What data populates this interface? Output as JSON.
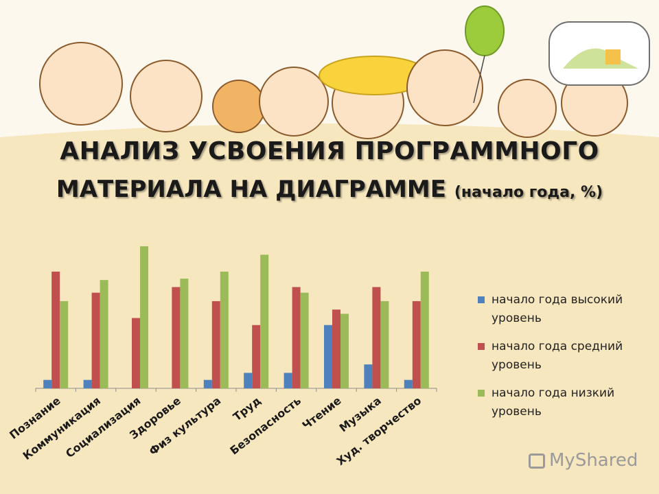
{
  "title_line1": "АНАЛИЗ УСВОЕНИЯ ПРОГРАММНОГО",
  "title_line2": "МАТЕРИАЛА НА ДИАГРАММЕ",
  "title_sub": "(начало года, %)",
  "watermark": "MyShared",
  "colors": {
    "high": "#4f81bd",
    "medium": "#c0504d",
    "low": "#9bbb59"
  },
  "chart_data": {
    "type": "bar",
    "title": "",
    "xlabel": "",
    "ylabel": "",
    "ylim": [
      0,
      100
    ],
    "grid": false,
    "legend_position": "right",
    "categories": [
      "Познание",
      "Коммуникация",
      "Социализация",
      "Здоровье",
      "Физ культура",
      "Труд",
      "Безопасность",
      "Чтение",
      "Музыка",
      "Худ. творчество"
    ],
    "series": [
      {
        "name": "начало года высокий уровень",
        "values": [
          6,
          6,
          0,
          0,
          6,
          11,
          11,
          45,
          17,
          6
        ]
      },
      {
        "name": "начало года средний уровень",
        "values": [
          83,
          68,
          50,
          72,
          62,
          45,
          72,
          56,
          72,
          62
        ]
      },
      {
        "name": "начало года низкий уровень",
        "values": [
          62,
          77,
          101,
          78,
          83,
          95,
          68,
          53,
          62,
          83
        ]
      }
    ]
  }
}
